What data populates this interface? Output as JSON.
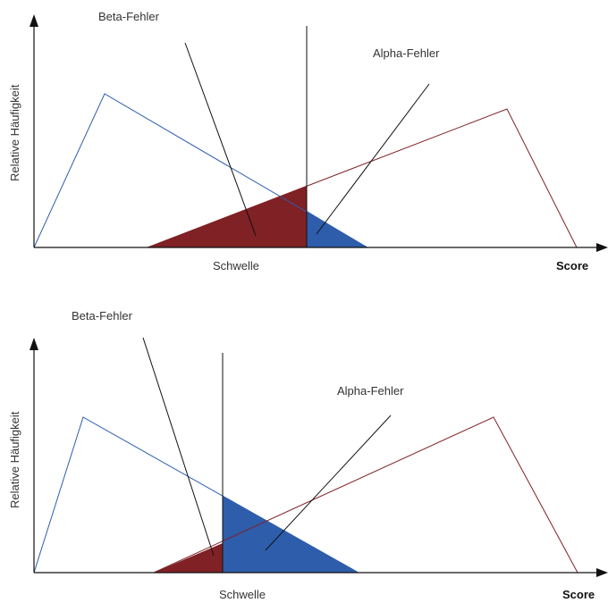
{
  "colors": {
    "blue": "#2e5dab",
    "red": "#7f2125",
    "axis": "#111111",
    "pointer": "#111111"
  },
  "panels": [
    {
      "y_axis_label": "Relative Häufigkeit",
      "x_axis_label": "Score",
      "threshold_label": "Schwelle",
      "beta_label": "Beta-Fehler",
      "alpha_label": "Alpha-Fehler"
    },
    {
      "y_axis_label": "Relative Häufigkeit",
      "x_axis_label": "Score",
      "threshold_label": "Schwelle",
      "beta_label": "Beta-Fehler",
      "alpha_label": "Alpha-Fehler"
    }
  ]
}
